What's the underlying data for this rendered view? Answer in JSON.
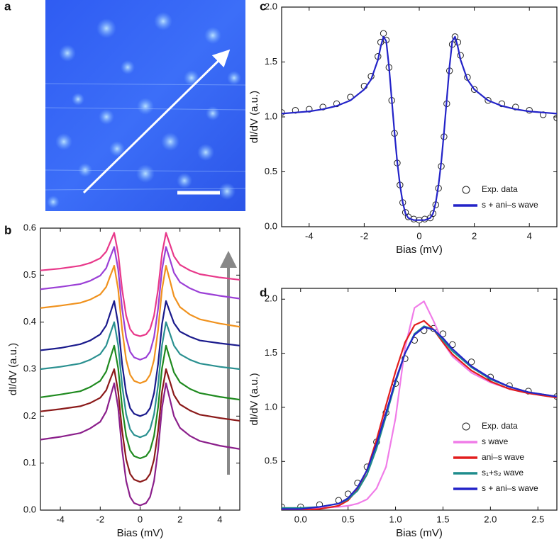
{
  "chart_data": [
    {
      "type": "image",
      "label": "a"
    },
    {
      "type": "line",
      "label": "b",
      "xlabel": "Bias (mV)",
      "ylabel": "dI/dV (a.u.)",
      "xlim": [
        -5,
        5
      ],
      "xticks": [
        -4,
        -2,
        0,
        2,
        4
      ],
      "ylim": [
        0,
        0.6
      ],
      "yticks": [
        {
          "value": 0,
          "label": "0.0"
        },
        0.1,
        0.2,
        0.3,
        0.4,
        0.5,
        0.6
      ],
      "x": [
        -5,
        -4,
        -3,
        -2.5,
        -2,
        -1.7,
        -1.5,
        -1.3,
        -1.1,
        -0.9,
        -0.7,
        -0.5,
        -0.3,
        0,
        0.3,
        0.5,
        0.7,
        0.9,
        1.1,
        1.3,
        1.5,
        1.7,
        2,
        2.5,
        3,
        4,
        5
      ],
      "series": [
        {
          "color": "#e8388a",
          "values": [
            0.51,
            0.514,
            0.52,
            0.526,
            0.536,
            0.55,
            0.57,
            0.59,
            0.546,
            0.469,
            0.414,
            0.385,
            0.374,
            0.37,
            0.374,
            0.385,
            0.414,
            0.469,
            0.546,
            0.59,
            0.565,
            0.54,
            0.522,
            0.51,
            0.502,
            0.495,
            0.49
          ]
        },
        {
          "color": "#9b3fd6",
          "values": [
            0.47,
            0.475,
            0.481,
            0.488,
            0.499,
            0.515,
            0.538,
            0.56,
            0.512,
            0.428,
            0.368,
            0.337,
            0.325,
            0.32,
            0.325,
            0.337,
            0.368,
            0.428,
            0.512,
            0.56,
            0.533,
            0.505,
            0.485,
            0.472,
            0.463,
            0.456,
            0.45
          ]
        },
        {
          "color": "#f0921e",
          "values": [
            0.43,
            0.435,
            0.441,
            0.448,
            0.459,
            0.475,
            0.498,
            0.52,
            0.47,
            0.383,
            0.32,
            0.288,
            0.275,
            0.27,
            0.275,
            0.288,
            0.32,
            0.383,
            0.47,
            0.52,
            0.488,
            0.455,
            0.432,
            0.416,
            0.406,
            0.397,
            0.39
          ]
        },
        {
          "color": "#1a1a8c",
          "values": [
            0.34,
            0.345,
            0.353,
            0.361,
            0.374,
            0.393,
            0.419,
            0.445,
            0.396,
            0.31,
            0.249,
            0.217,
            0.205,
            0.2,
            0.205,
            0.217,
            0.249,
            0.31,
            0.396,
            0.445,
            0.421,
            0.398,
            0.38,
            0.369,
            0.361,
            0.355,
            0.35
          ]
        },
        {
          "color": "#2a9090",
          "values": [
            0.3,
            0.305,
            0.312,
            0.32,
            0.332,
            0.35,
            0.375,
            0.4,
            0.351,
            0.265,
            0.204,
            0.172,
            0.16,
            0.155,
            0.16,
            0.172,
            0.204,
            0.265,
            0.351,
            0.4,
            0.375,
            0.35,
            0.332,
            0.32,
            0.312,
            0.305,
            0.3
          ]
        },
        {
          "color": "#1f8a1f",
          "values": [
            0.24,
            0.246,
            0.253,
            0.262,
            0.275,
            0.295,
            0.323,
            0.35,
            0.302,
            0.218,
            0.158,
            0.127,
            0.115,
            0.11,
            0.115,
            0.127,
            0.158,
            0.218,
            0.302,
            0.35,
            0.321,
            0.293,
            0.272,
            0.258,
            0.249,
            0.241,
            0.235
          ]
        },
        {
          "color": "#8b1a1a",
          "values": [
            0.21,
            0.215,
            0.221,
            0.228,
            0.239,
            0.255,
            0.278,
            0.3,
            0.252,
            0.168,
            0.108,
            0.077,
            0.065,
            0.06,
            0.065,
            0.077,
            0.108,
            0.168,
            0.252,
            0.3,
            0.273,
            0.245,
            0.225,
            0.212,
            0.203,
            0.196,
            0.19
          ]
        },
        {
          "color": "#8b1f8b",
          "values": [
            0.15,
            0.156,
            0.164,
            0.174,
            0.188,
            0.21,
            0.24,
            0.27,
            0.218,
            0.127,
            0.062,
            0.028,
            0.015,
            0.01,
            0.015,
            0.028,
            0.062,
            0.127,
            0.218,
            0.27,
            0.235,
            0.2,
            0.175,
            0.158,
            0.147,
            0.137,
            0.13
          ]
        }
      ]
    },
    {
      "type": "line",
      "label": "c",
      "xlabel": "Bias (mV)",
      "ylabel": "dI/dV (a.u.)",
      "legend": "lower right",
      "xlim": [
        -5,
        5
      ],
      "xticks": [
        -4,
        -2,
        0,
        2,
        4
      ],
      "ylim": [
        0,
        2
      ],
      "yticks": [
        {
          "value": 0,
          "label": "0.0"
        },
        0.5,
        {
          "value": 1,
          "label": "1.0"
        },
        1.5,
        {
          "value": 2,
          "label": "2.0"
        }
      ],
      "x": [
        -5,
        -4.5,
        -4,
        -3.5,
        -3,
        -2.5,
        -2,
        -1.75,
        -1.5,
        -1.4,
        -1.3,
        -1.2,
        -1.1,
        -1.0,
        -0.9,
        -0.8,
        -0.7,
        -0.6,
        -0.5,
        -0.4,
        -0.2,
        0,
        0.2,
        0.4,
        0.5,
        0.6,
        0.7,
        0.8,
        0.9,
        1.0,
        1.1,
        1.2,
        1.3,
        1.4,
        1.5,
        1.75,
        2,
        2.5,
        3,
        3.5,
        4,
        4.5,
        5
      ],
      "series": [
        {
          "name": "Exp. data",
          "mode": "markers",
          "color": "#222222",
          "values": [
            1.04,
            1.06,
            1.07,
            1.09,
            1.12,
            1.18,
            1.28,
            1.37,
            1.55,
            1.68,
            1.76,
            1.7,
            1.45,
            1.15,
            0.85,
            0.58,
            0.38,
            0.22,
            0.13,
            0.09,
            0.07,
            0.06,
            0.07,
            0.08,
            0.12,
            0.2,
            0.35,
            0.55,
            0.82,
            1.12,
            1.42,
            1.66,
            1.73,
            1.68,
            1.56,
            1.36,
            1.25,
            1.15,
            1.12,
            1.09,
            1.06,
            1.02,
            0.99
          ]
        },
        {
          "name": "s + ani–s wave",
          "mode": "line",
          "color": "#2323c8",
          "values": [
            1.03,
            1.04,
            1.05,
            1.07,
            1.1,
            1.15,
            1.25,
            1.34,
            1.52,
            1.64,
            1.73,
            1.69,
            1.46,
            1.16,
            0.86,
            0.59,
            0.38,
            0.22,
            0.12,
            0.08,
            0.06,
            0.06,
            0.06,
            0.08,
            0.12,
            0.22,
            0.38,
            0.59,
            0.86,
            1.16,
            1.46,
            1.69,
            1.73,
            1.64,
            1.52,
            1.34,
            1.25,
            1.15,
            1.1,
            1.07,
            1.05,
            1.04,
            1.03
          ]
        }
      ]
    },
    {
      "type": "line",
      "label": "d",
      "xlabel": "Bias (mV)",
      "ylabel": "dI/dV (a.u.)",
      "legend": "lower right",
      "xlim": [
        -0.2,
        2.7
      ],
      "xticks": [
        {
          "value": 0,
          "label": "0.0"
        },
        0.5,
        {
          "value": 1,
          "label": "1.0"
        },
        1.5,
        {
          "value": 2,
          "label": "2.0"
        },
        2.5
      ],
      "ylim": [
        0.05,
        2.1
      ],
      "yticks": [
        0.5,
        {
          "value": 1,
          "label": "1.0"
        },
        1.5,
        {
          "value": 2,
          "label": "2.0"
        }
      ],
      "x": [
        -0.2,
        0,
        0.2,
        0.4,
        0.5,
        0.6,
        0.7,
        0.8,
        0.9,
        1.0,
        1.1,
        1.2,
        1.3,
        1.4,
        1.5,
        1.6,
        1.8,
        2.0,
        2.2,
        2.4,
        2.7
      ],
      "series": [
        {
          "name": "Exp. data",
          "mode": "markers",
          "color": "#222222",
          "values": [
            0.08,
            0.08,
            0.1,
            0.14,
            0.2,
            0.3,
            0.45,
            0.68,
            0.95,
            1.22,
            1.45,
            1.62,
            1.71,
            1.73,
            1.68,
            1.58,
            1.42,
            1.28,
            1.2,
            1.15,
            1.1
          ]
        },
        {
          "name": "s wave",
          "mode": "line",
          "color": "#f07ce8",
          "values": [
            0.07,
            0.07,
            0.07,
            0.08,
            0.09,
            0.11,
            0.15,
            0.25,
            0.45,
            0.9,
            1.55,
            1.92,
            1.98,
            1.8,
            1.6,
            1.47,
            1.32,
            1.23,
            1.17,
            1.13,
            1.09
          ]
        },
        {
          "name": "ani–s wave",
          "mode": "line",
          "color": "#e21d1d",
          "values": [
            0.05,
            0.05,
            0.06,
            0.09,
            0.14,
            0.24,
            0.42,
            0.7,
            1.02,
            1.33,
            1.6,
            1.76,
            1.8,
            1.72,
            1.6,
            1.49,
            1.34,
            1.24,
            1.17,
            1.13,
            1.09
          ]
        },
        {
          "name": "s₁+s₂ wave",
          "mode": "line",
          "color": "#1e8c8c",
          "values": [
            0.07,
            0.07,
            0.08,
            0.11,
            0.15,
            0.23,
            0.38,
            0.62,
            0.92,
            1.23,
            1.5,
            1.68,
            1.75,
            1.72,
            1.62,
            1.52,
            1.37,
            1.26,
            1.19,
            1.14,
            1.1
          ]
        },
        {
          "name": "s + ani–s wave",
          "mode": "line",
          "color": "#2323c8",
          "values": [
            0.06,
            0.06,
            0.08,
            0.11,
            0.16,
            0.26,
            0.42,
            0.66,
            0.95,
            1.25,
            1.5,
            1.67,
            1.74,
            1.72,
            1.64,
            1.54,
            1.38,
            1.27,
            1.19,
            1.14,
            1.1
          ]
        }
      ]
    }
  ]
}
